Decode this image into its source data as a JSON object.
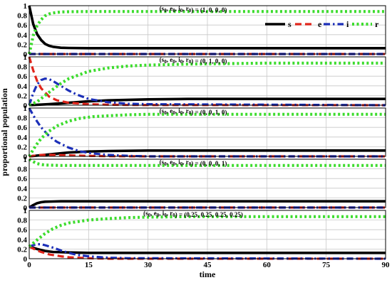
{
  "chart_data": {
    "type": "line",
    "xlabel": "time",
    "ylabel": "proportional population",
    "xlim": [
      0,
      90
    ],
    "ylim": [
      0,
      1
    ],
    "x_ticks": [
      "0",
      "15",
      "30",
      "45",
      "60",
      "75",
      "90"
    ],
    "y_ticks": [
      "0",
      "0.2",
      "0.4",
      "0.6",
      "0.8",
      "1"
    ],
    "grid": true,
    "legend": {
      "placement": "top-right",
      "entries": [
        {
          "name": "s",
          "color": "#000000",
          "dash": "solid"
        },
        {
          "name": "e",
          "color": "#e0261c",
          "dash": "dashed"
        },
        {
          "name": "i",
          "color": "#1c2fb8",
          "dash": "dashdot"
        },
        {
          "name": "r",
          "color": "#3ddc2e",
          "dash": "dotted"
        }
      ]
    },
    "panels": [
      {
        "title": {
          "base": "(s",
          "sub": [
            "0",
            "0",
            "0",
            "0"
          ],
          "vars": [
            "s",
            "e",
            "i",
            "r"
          ],
          "value": ") = (1, 0, 0, 0)"
        },
        "series": [
          {
            "name": "s",
            "x": [
              0,
              1,
              2,
              3,
              4,
              5,
              6,
              8,
              10,
              15,
              90
            ],
            "y": [
              1,
              0.62,
              0.41,
              0.29,
              0.21,
              0.17,
              0.15,
              0.13,
              0.125,
              0.12,
              0.12
            ]
          },
          {
            "name": "e",
            "x": [
              0,
              90
            ],
            "y": [
              0,
              0
            ]
          },
          {
            "name": "i",
            "x": [
              0,
              90
            ],
            "y": [
              0,
              0
            ]
          },
          {
            "name": "r",
            "x": [
              0,
              1,
              2,
              3,
              4,
              5,
              6,
              8,
              10,
              15,
              90
            ],
            "y": [
              0,
              0.38,
              0.59,
              0.71,
              0.79,
              0.83,
              0.85,
              0.87,
              0.875,
              0.88,
              0.88
            ]
          }
        ]
      },
      {
        "title": {
          "value": ") = (0, 1, 0, 0)"
        },
        "series": [
          {
            "name": "s",
            "x": [
              0,
              5,
              10,
              15,
              20,
              30,
              40,
              90
            ],
            "y": [
              0,
              0.02,
              0.05,
              0.08,
              0.1,
              0.12,
              0.13,
              0.13
            ]
          },
          {
            "name": "e",
            "x": [
              0,
              1,
              2,
              3,
              5,
              7,
              10,
              15,
              20,
              25,
              90
            ],
            "y": [
              1,
              0.72,
              0.5,
              0.35,
              0.18,
              0.1,
              0.05,
              0.02,
              0.01,
              0.005,
              0
            ]
          },
          {
            "name": "i",
            "x": [
              0,
              1,
              2,
              3,
              4,
              5,
              6,
              8,
              10,
              12,
              15,
              20,
              25,
              30,
              90
            ],
            "y": [
              0,
              0.25,
              0.43,
              0.52,
              0.55,
              0.54,
              0.5,
              0.4,
              0.3,
              0.22,
              0.13,
              0.06,
              0.03,
              0.02,
              0
            ]
          },
          {
            "name": "r",
            "x": [
              0,
              2,
              4,
              6,
              8,
              10,
              15,
              20,
              25,
              30,
              40,
              50,
              60,
              90
            ],
            "y": [
              0,
              0.07,
              0.2,
              0.33,
              0.45,
              0.55,
              0.7,
              0.77,
              0.81,
              0.83,
              0.85,
              0.86,
              0.87,
              0.87
            ]
          }
        ]
      },
      {
        "title": {
          "value": ") = (0, 0, 1, 0)"
        },
        "series": [
          {
            "name": "s",
            "x": [
              0,
              5,
              10,
              15,
              20,
              30,
              90
            ],
            "y": [
              0,
              0.04,
              0.08,
              0.1,
              0.11,
              0.12,
              0.12
            ]
          },
          {
            "name": "e",
            "x": [
              0,
              3,
              6,
              10,
              15,
              20,
              30,
              90
            ],
            "y": [
              0,
              0.03,
              0.03,
              0.02,
              0.01,
              0.005,
              0,
              0
            ]
          },
          {
            "name": "i",
            "x": [
              0,
              1,
              2,
              3,
              5,
              7,
              10,
              13,
              16,
              20,
              25,
              30,
              90
            ],
            "y": [
              1,
              0.85,
              0.72,
              0.6,
              0.42,
              0.3,
              0.18,
              0.1,
              0.06,
              0.03,
              0.01,
              0,
              0
            ]
          },
          {
            "name": "r",
            "x": [
              0,
              1,
              2,
              3,
              5,
              7,
              10,
              13,
              16,
              20,
              25,
              30,
              40,
              90
            ],
            "y": [
              0,
              0.14,
              0.26,
              0.37,
              0.52,
              0.63,
              0.73,
              0.79,
              0.82,
              0.84,
              0.86,
              0.87,
              0.87,
              0.87
            ]
          }
        ]
      },
      {
        "title": {
          "value": ") = (0, 0, 0, 1)"
        },
        "series": [
          {
            "name": "s",
            "x": [
              0,
              1,
              2,
              3,
              4,
              6,
              8,
              10,
              90
            ],
            "y": [
              0,
              0.05,
              0.09,
              0.11,
              0.12,
              0.125,
              0.13,
              0.13,
              0.13
            ]
          },
          {
            "name": "e",
            "x": [
              0,
              90
            ],
            "y": [
              0,
              0
            ]
          },
          {
            "name": "i",
            "x": [
              0,
              90
            ],
            "y": [
              0,
              0
            ]
          },
          {
            "name": "r",
            "x": [
              0,
              1,
              2,
              3,
              4,
              6,
              8,
              10,
              90
            ],
            "y": [
              1,
              0.95,
              0.91,
              0.89,
              0.88,
              0.875,
              0.87,
              0.87,
              0.87
            ]
          }
        ]
      },
      {
        "title": {
          "value": ") = (0.25, 0.25, 0.25, 0.25)"
        },
        "series": [
          {
            "name": "s",
            "x": [
              0,
              2,
              4,
              6,
              10,
              15,
              90
            ],
            "y": [
              0.25,
              0.2,
              0.16,
              0.14,
              0.13,
              0.12,
              0.12
            ]
          },
          {
            "name": "e",
            "x": [
              0,
              1,
              2,
              3,
              5,
              8,
              10,
              15,
              20,
              90
            ],
            "y": [
              0.25,
              0.21,
              0.17,
              0.14,
              0.09,
              0.05,
              0.03,
              0.01,
              0,
              0
            ]
          },
          {
            "name": "i",
            "x": [
              0,
              1,
              2,
              3,
              4,
              6,
              8,
              10,
              12,
              15,
              20,
              25,
              90
            ],
            "y": [
              0.25,
              0.28,
              0.3,
              0.3,
              0.28,
              0.23,
              0.17,
              0.12,
              0.08,
              0.05,
              0.02,
              0.01,
              0
            ]
          },
          {
            "name": "r",
            "x": [
              0,
              2,
              4,
              6,
              8,
              10,
              15,
              20,
              25,
              30,
              40,
              90
            ],
            "y": [
              0.25,
              0.39,
              0.52,
              0.62,
              0.69,
              0.74,
              0.8,
              0.83,
              0.85,
              0.86,
              0.87,
              0.87
            ]
          }
        ]
      }
    ]
  }
}
